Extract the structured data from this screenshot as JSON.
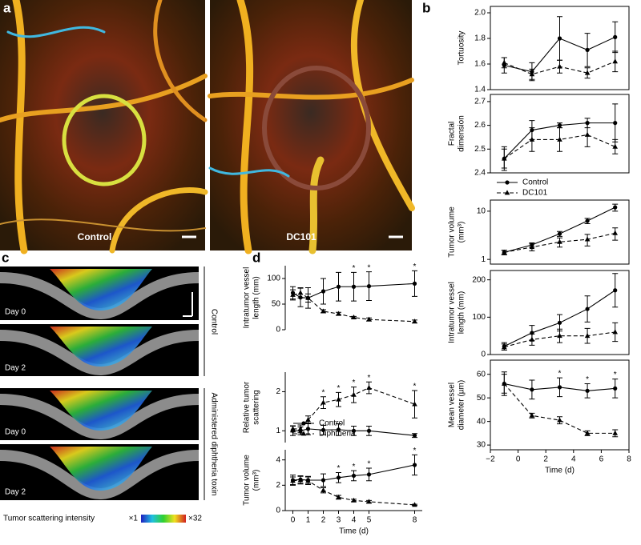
{
  "panel_labels": [
    "a",
    "b",
    "c",
    "d"
  ],
  "panel_a": {
    "left": "Control",
    "right": "DC101"
  },
  "panel_c": {
    "rows": [
      "Day 0",
      "Day 2",
      "Day 0",
      "Day 2"
    ],
    "groups": [
      "Control",
      "Administered diphtheria toxin"
    ],
    "colorbar": {
      "label": "Tumor scattering intensity",
      "min": "×1",
      "max": "×32"
    }
  },
  "chart_data": [
    {
      "type": "line",
      "ylabel": [
        "Tortuosity"
      ],
      "x": [
        -1,
        1,
        3,
        5,
        7
      ],
      "xlim": [
        -2,
        8
      ],
      "ylim": [
        1.4,
        2.05
      ],
      "yticks": [
        1.4,
        1.6,
        1.8,
        {
          "value": 2,
          "label": "2.0"
        }
      ],
      "frame": true,
      "series": [
        {
          "color": "#000000",
          "marker": "circle",
          "dashed": false,
          "values": [
            1.59,
            1.54,
            1.8,
            1.71,
            1.81
          ],
          "errors": [
            0.06,
            0.07,
            0.17,
            0.13,
            0.12
          ]
        },
        {
          "color": "#000000",
          "marker": "triangle",
          "dashed": true,
          "values": [
            1.61,
            1.52,
            1.58,
            1.53,
            1.62
          ],
          "errors": [
            0.04,
            0.04,
            0.05,
            0.04,
            0.08
          ]
        }
      ]
    },
    {
      "type": "line",
      "ylabel": [
        "Fractal",
        "dimension"
      ],
      "x": [
        -1,
        1,
        3,
        5,
        7
      ],
      "xlim": [
        -2,
        8
      ],
      "ylim": [
        2.4,
        2.73
      ],
      "yticks": [
        2.4,
        2.5,
        2.6,
        2.7
      ],
      "frame": true,
      "legend": "below",
      "series": [
        {
          "name": "Control",
          "color": "#000000",
          "marker": "circle",
          "dashed": false,
          "values": [
            2.46,
            2.58,
            2.6,
            2.61,
            2.61
          ],
          "errors": [
            0.05,
            0.04,
            0.01,
            0.02,
            0.08
          ]
        },
        {
          "name": "DC101",
          "color": "#000000",
          "marker": "triangle",
          "dashed": true,
          "values": [
            2.46,
            2.54,
            2.54,
            2.56,
            2.51
          ],
          "errors": [
            0.04,
            0.05,
            0.05,
            0.05,
            0.03
          ]
        }
      ]
    },
    {
      "type": "line",
      "ylabel": [
        "Tumor volume",
        "(mm³)"
      ],
      "x": [
        -1,
        1,
        3,
        5,
        7
      ],
      "xlim": [
        -2,
        8
      ],
      "ylim": [
        0.8,
        17
      ],
      "log": true,
      "yticks": [
        1,
        10
      ],
      "frame": true,
      "series": [
        {
          "color": "#000000",
          "marker": "circle",
          "dashed": false,
          "values": [
            1.4,
            2,
            3.4,
            6.3,
            12
          ],
          "errors": [
            0.15,
            0.2,
            0.4,
            0.8,
            2
          ]
        },
        {
          "color": "#000000",
          "marker": "triangle",
          "dashed": true,
          "values": [
            1.4,
            1.8,
            2.3,
            2.6,
            3.5
          ],
          "errors": [
            0.15,
            0.3,
            0.5,
            0.7,
            1
          ]
        }
      ]
    },
    {
      "type": "line",
      "ylabel": [
        "Intratumor vessel",
        "length (mm)"
      ],
      "x": [
        -1,
        1,
        3,
        5,
        7
      ],
      "xlim": [
        -2,
        8
      ],
      "ylim": [
        0,
        225
      ],
      "yticks": [
        0,
        100,
        200
      ],
      "frame": true,
      "series": [
        {
          "color": "#000000",
          "marker": "circle",
          "dashed": false,
          "values": [
            22,
            58,
            85,
            122,
            172
          ],
          "errors": [
            10,
            20,
            22,
            35,
            45
          ]
        },
        {
          "color": "#000000",
          "marker": "triangle",
          "dashed": true,
          "values": [
            20,
            40,
            50,
            50,
            60
          ],
          "errors": [
            8,
            15,
            18,
            20,
            25
          ]
        }
      ]
    },
    {
      "type": "line",
      "ylabel": [
        "Mean vessel",
        "diameter (µm)"
      ],
      "xlabel": "Time (d)",
      "x": [
        -1,
        1,
        3,
        5,
        7
      ],
      "xlim": [
        -2,
        8
      ],
      "ylim": [
        28,
        66
      ],
      "xticks": [
        {
          "value": -2,
          "label": "−2"
        },
        0,
        2,
        4,
        6,
        8
      ],
      "yticks": [
        30,
        40,
        50,
        60
      ],
      "frame": true,
      "annotations": [
        {
          "x": 3,
          "label": "*"
        },
        {
          "x": 5,
          "label": "*"
        },
        {
          "x": 7,
          "label": "*"
        }
      ],
      "series": [
        {
          "color": "#000000",
          "marker": "circle",
          "dashed": false,
          "values": [
            56,
            53.5,
            54.5,
            53,
            54
          ],
          "errors": [
            5,
            4,
            4,
            3,
            4
          ]
        },
        {
          "color": "#000000",
          "marker": "triangle",
          "dashed": true,
          "values": [
            56,
            42.5,
            40.5,
            35,
            35
          ],
          "errors": [
            4,
            1,
            1.5,
            1,
            1.5
          ]
        }
      ]
    },
    {
      "type": "line",
      "ylabel": [
        "Intratumor vessel",
        "length (mm)"
      ],
      "x": [
        0,
        0.5,
        1,
        2,
        3,
        4,
        5,
        8
      ],
      "xlim": [
        -0.5,
        8.5
      ],
      "ylim": [
        0,
        125
      ],
      "yticks": [
        0,
        50,
        100
      ],
      "frame": false,
      "annotations": [
        {
          "x": 4,
          "label": "*"
        },
        {
          "x": 5,
          "label": "*"
        },
        {
          "x": 8,
          "label": "*"
        }
      ],
      "series": [
        {
          "color": "#000000",
          "marker": "circle",
          "dashed": false,
          "values": [
            72,
            63,
            62,
            75,
            84,
            84,
            85,
            90
          ],
          "errors": [
            12,
            18,
            20,
            25,
            28,
            28,
            28,
            25
          ]
        },
        {
          "color": "#000000",
          "marker": "triangle",
          "dashed": true,
          "values": [
            68,
            72,
            62,
            36,
            31,
            24,
            20,
            16
          ],
          "errors": [
            10,
            10,
            8,
            3,
            3,
            2,
            3,
            3
          ]
        }
      ]
    },
    {
      "type": "line",
      "ylabel": [
        "Relative tumor",
        "scattering"
      ],
      "x": [
        0,
        0.5,
        1,
        2,
        3,
        4,
        5,
        8
      ],
      "xlim": [
        -0.5,
        8.5
      ],
      "ylim": [
        0.7,
        2.5
      ],
      "yticks": [
        1,
        2
      ],
      "frame": false,
      "legend": "lower-left",
      "annotations": [
        {
          "x": 2,
          "label": "*"
        },
        {
          "x": 3,
          "label": "*"
        },
        {
          "x": 4,
          "label": "*"
        },
        {
          "x": 5,
          "label": "*"
        },
        {
          "x": 8,
          "label": "*"
        }
      ],
      "series": [
        {
          "name": "Control",
          "color": "#000000",
          "marker": "circle",
          "dashed": false,
          "values": [
            1,
            1,
            1.05,
            1.02,
            1.03,
            1,
            1,
            0.88
          ],
          "errors": [
            0.12,
            0.1,
            0.15,
            0.12,
            0.15,
            0.12,
            0.12,
            0.05
          ]
        },
        {
          "name": "Diphtheria",
          "color": "#000000",
          "marker": "triangle",
          "dashed": true,
          "values": [
            1.05,
            1.05,
            1.28,
            1.72,
            1.8,
            1.92,
            2.1,
            1.68
          ],
          "errors": [
            0.08,
            0.1,
            0.1,
            0.15,
            0.18,
            0.2,
            0.15,
            0.35
          ]
        }
      ]
    },
    {
      "type": "line",
      "ylabel": [
        "Tumor volume",
        "(mm³)"
      ],
      "xlabel": "Time (d)",
      "x": [
        0,
        0.5,
        1,
        2,
        3,
        4,
        5,
        8
      ],
      "xlim": [
        -0.5,
        8.5
      ],
      "ylim": [
        0,
        4.8
      ],
      "xticks": [
        0,
        1,
        2,
        3,
        4,
        5,
        8
      ],
      "yticks": [
        0,
        2,
        4
      ],
      "frame": false,
      "annotations": [
        {
          "x": 3,
          "label": "*"
        },
        {
          "x": 4,
          "label": "*"
        },
        {
          "x": 5,
          "label": "*"
        },
        {
          "x": 8,
          "label": "*"
        }
      ],
      "series": [
        {
          "color": "#000000",
          "marker": "circle",
          "dashed": false,
          "values": [
            2.4,
            2.45,
            2.4,
            2.4,
            2.6,
            2.75,
            2.85,
            3.6
          ],
          "errors": [
            0.4,
            0.3,
            0.3,
            0.5,
            0.4,
            0.4,
            0.5,
            0.8
          ]
        },
        {
          "color": "#000000",
          "marker": "triangle",
          "dashed": true,
          "values": [
            2.35,
            2.4,
            2.35,
            1.6,
            1.05,
            0.8,
            0.7,
            0.45
          ],
          "errors": [
            0.3,
            0.3,
            0.3,
            0.2,
            0.15,
            0.1,
            0.1,
            0.05
          ]
        }
      ]
    }
  ]
}
